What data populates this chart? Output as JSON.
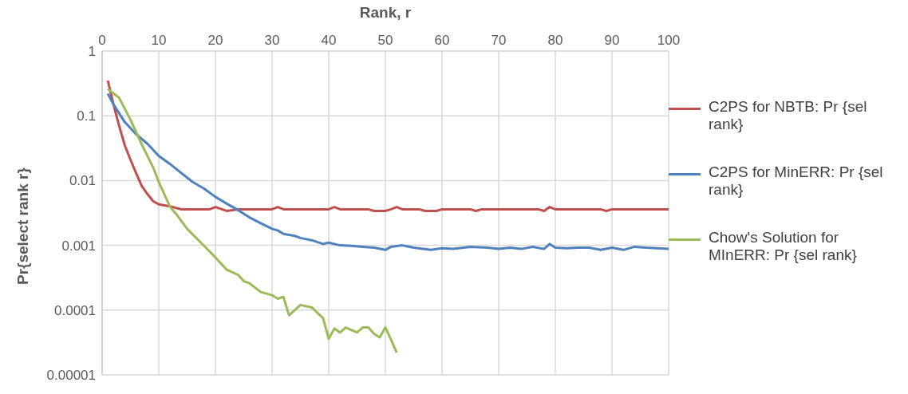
{
  "chart_data": {
    "type": "line",
    "xlabel": "Rank, r",
    "ylabel": "Pr{select rank r}",
    "xlim": [
      0,
      100
    ],
    "xticks": [
      0,
      10,
      20,
      30,
      40,
      50,
      60,
      70,
      80,
      90,
      100
    ],
    "ylim": [
      1e-05,
      1
    ],
    "yticks": [
      1,
      0.1,
      0.01,
      0.001,
      0.0001,
      {
        "value": 1e-05,
        "label": "0.00001"
      }
    ],
    "log": "y",
    "grid": true,
    "legend": "right",
    "marker": "none",
    "line_style": "solid",
    "series": [
      {
        "name": "C2PS for NBTB: Pr {sel rank}",
        "color": "#c0504d",
        "x": [
          1,
          2,
          3,
          4,
          5,
          6,
          7,
          8,
          9,
          10,
          12,
          14,
          19,
          20,
          22,
          24,
          30,
          31,
          32,
          40,
          41,
          42,
          47,
          48,
          50,
          51,
          52,
          53,
          56,
          57,
          59,
          60,
          65,
          66,
          67,
          77,
          78,
          79,
          80,
          88,
          89,
          90,
          100
        ],
        "values": [
          0.35,
          0.15,
          0.07,
          0.035,
          0.021,
          0.013,
          0.0082,
          0.0062,
          0.0048,
          0.0043,
          0.004,
          0.0036,
          0.0036,
          0.0039,
          0.0034,
          0.0036,
          0.0036,
          0.0039,
          0.0036,
          0.0036,
          0.0039,
          0.0036,
          0.0036,
          0.0034,
          0.0034,
          0.0036,
          0.0039,
          0.0036,
          0.0036,
          0.0034,
          0.0034,
          0.0036,
          0.0036,
          0.0034,
          0.0036,
          0.0036,
          0.0034,
          0.0039,
          0.0036,
          0.0036,
          0.0034,
          0.0036,
          0.0036
        ]
      },
      {
        "name": "C2PS for MinERR: Pr {sel rank}",
        "color": "#4f81bd",
        "x": [
          1,
          2,
          4,
          6,
          8,
          10,
          12,
          14,
          16,
          18,
          20,
          22,
          24,
          26,
          28,
          30,
          31,
          32,
          34,
          35,
          37,
          39,
          40,
          42,
          44,
          46,
          48,
          50,
          51,
          53,
          55,
          58,
          60,
          62,
          65,
          68,
          70,
          72,
          74,
          76,
          78,
          79,
          80,
          82,
          84,
          86,
          88,
          90,
          92,
          94,
          96,
          100
        ],
        "values": [
          0.22,
          0.15,
          0.08,
          0.052,
          0.037,
          0.024,
          0.018,
          0.013,
          0.0095,
          0.0075,
          0.0056,
          0.0044,
          0.0035,
          0.0027,
          0.0022,
          0.0018,
          0.0017,
          0.0015,
          0.0014,
          0.0013,
          0.0012,
          0.00105,
          0.0011,
          0.001,
          0.00098,
          0.00095,
          0.00092,
          0.00085,
          0.00095,
          0.001,
          0.00092,
          0.00085,
          0.0009,
          0.00088,
          0.00095,
          0.00092,
          0.00088,
          0.00092,
          0.00088,
          0.00095,
          0.00088,
          0.00105,
          0.00092,
          0.0009,
          0.00092,
          0.00092,
          0.00085,
          0.00092,
          0.00085,
          0.00095,
          0.00092,
          0.00088
        ]
      },
      {
        "name": "Chow's Solution for MInERR: Pr {sel rank}",
        "color": "#9bbb59",
        "x": [
          1,
          3,
          5,
          7,
          9,
          10,
          12,
          13,
          15,
          18,
          20,
          22,
          24,
          25,
          26,
          28,
          30,
          31,
          32,
          33,
          35,
          37,
          39,
          40,
          41,
          42,
          43,
          45,
          46,
          47,
          48,
          49,
          50,
          51,
          52
        ],
        "values": [
          0.26,
          0.19,
          0.087,
          0.036,
          0.016,
          0.0095,
          0.0039,
          0.0031,
          0.0018,
          0.00098,
          0.00065,
          0.00042,
          0.00035,
          0.00028,
          0.00026,
          0.00019,
          0.00017,
          0.00015,
          0.00016,
          8.3e-05,
          0.00012,
          0.00011,
          7.5e-05,
          3.6e-05,
          5.2e-05,
          4.5e-05,
          5.4e-05,
          4.5e-05,
          5.4e-05,
          5.4e-05,
          4.3e-05,
          3.8e-05,
          5.4e-05,
          3.5e-05,
          2.2e-05
        ]
      }
    ]
  }
}
